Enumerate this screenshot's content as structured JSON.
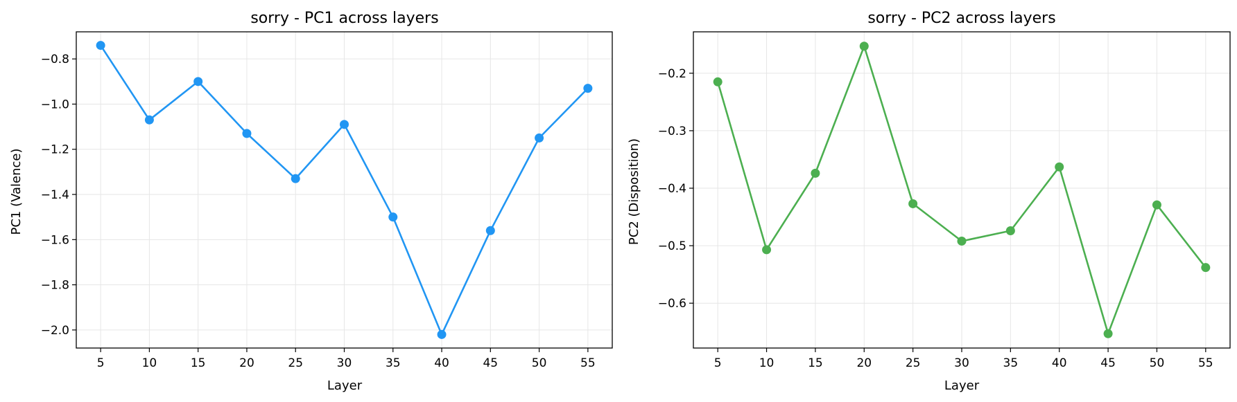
{
  "chart_data": [
    {
      "type": "line",
      "title": "sorry - PC1 across layers",
      "xlabel": "Layer",
      "ylabel": "PC1 (Valence)",
      "x": [
        5,
        10,
        15,
        20,
        25,
        30,
        35,
        40,
        45,
        50,
        55
      ],
      "xticks": [
        5,
        10,
        15,
        20,
        25,
        30,
        35,
        40,
        45,
        50,
        55
      ],
      "xtick_labels": [
        "5",
        "10",
        "15",
        "20",
        "25",
        "30",
        "35",
        "40",
        "45",
        "50",
        "55"
      ],
      "xlim": [
        2.5,
        57.5
      ],
      "yticks": [
        -2.0,
        -1.8,
        -1.6,
        -1.4,
        -1.2,
        -1.0,
        -0.8
      ],
      "ytick_labels": [
        "−2.0",
        "−1.8",
        "−1.6",
        "−1.4",
        "−1.2",
        "−1.0",
        "−0.8"
      ],
      "ylim": [
        -2.08,
        -0.68
      ],
      "grid": true,
      "color": "#2196F3",
      "series": [
        {
          "values": [
            -0.74,
            -1.07,
            -0.9,
            -1.13,
            -1.33,
            -1.09,
            -1.5,
            -2.02,
            -1.56,
            -1.15,
            -0.93
          ]
        }
      ]
    },
    {
      "type": "line",
      "title": "sorry - PC2 across layers",
      "xlabel": "Layer",
      "ylabel": "PC2 (Disposition)",
      "x": [
        5,
        10,
        15,
        20,
        25,
        30,
        35,
        40,
        45,
        50,
        55
      ],
      "xticks": [
        5,
        10,
        15,
        20,
        25,
        30,
        35,
        40,
        45,
        50,
        55
      ],
      "xtick_labels": [
        "5",
        "10",
        "15",
        "20",
        "25",
        "30",
        "35",
        "40",
        "45",
        "50",
        "55"
      ],
      "xlim": [
        2.5,
        57.5
      ],
      "yticks": [
        -0.6,
        -0.5,
        -0.4,
        -0.3,
        -0.2
      ],
      "ytick_labels": [
        "−0.6",
        "−0.5",
        "−0.4",
        "−0.3",
        "−0.2"
      ],
      "ylim": [
        -0.678,
        -0.128
      ],
      "grid": true,
      "color": "#4CAF50",
      "series": [
        {
          "values": [
            -0.215,
            -0.507,
            -0.374,
            -0.153,
            -0.427,
            -0.492,
            -0.474,
            -0.363,
            -0.653,
            -0.429,
            -0.538
          ]
        }
      ]
    }
  ]
}
